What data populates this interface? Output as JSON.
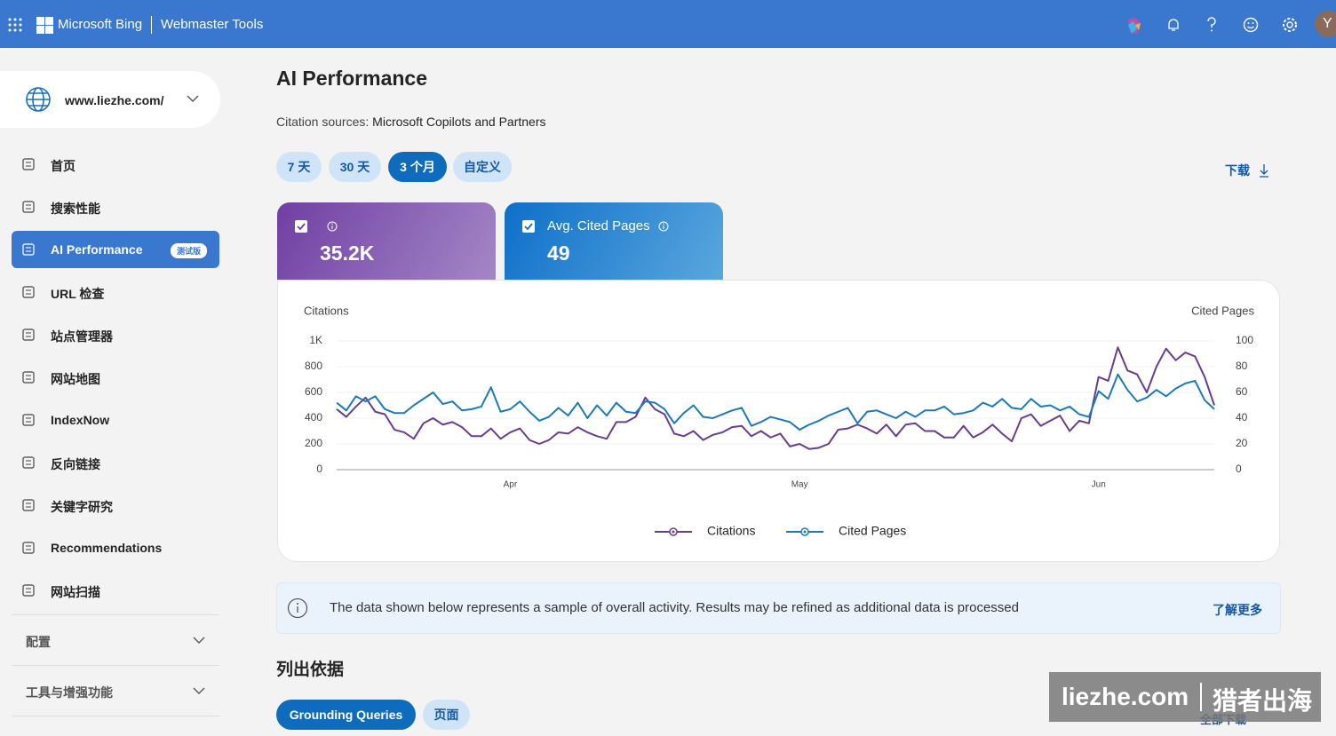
{
  "header": {
    "brand": "Microsoft Bing",
    "product": "Webmaster Tools",
    "avatar": "Y"
  },
  "sidebar": {
    "site": "www.liezhe.com/",
    "nav": [
      {
        "label": "首页"
      },
      {
        "label": "搜索性能"
      },
      {
        "label": "AI Performance",
        "badge": "测试版"
      },
      {
        "label": "URL 检查"
      },
      {
        "label": "站点管理器"
      },
      {
        "label": "网站地图"
      },
      {
        "label": "IndexNow"
      },
      {
        "label": "反向链接"
      },
      {
        "label": "关键字研究"
      },
      {
        "label": "Recommendations"
      },
      {
        "label": "网站扫描"
      }
    ],
    "sections": [
      "配置",
      "工具与增强功能"
    ]
  },
  "page": {
    "title": "AI Performance",
    "citation_label": "Citation sources:",
    "citation_value": "Microsoft Copilots and Partners",
    "ranges": [
      "7 天",
      "30 天",
      "3 个月",
      "自定义"
    ],
    "download": "下载",
    "cards": [
      {
        "value": "35.2K"
      },
      {
        "label": "Avg. Cited Pages",
        "value": 49
      }
    ],
    "notice": "The data shown below represents a sample of overall activity. Results may be refined as additional data is processed",
    "learn_more": "了解更多",
    "section_title": "列出依据",
    "tabs": [
      "Grounding Queries",
      "页面"
    ],
    "download_all": "全部下载"
  },
  "watermark": {
    "site": "liezhe.com",
    "brand": "猎者出海"
  },
  "chart_data": {
    "type": "line",
    "ylabel": "Citations",
    "y2label": "Cited Pages",
    "categories": [
      null,
      null,
      null,
      null,
      null,
      null,
      null,
      null,
      null,
      null,
      null,
      null,
      null,
      null,
      null,
      null,
      null,
      null,
      "Apr",
      null,
      null,
      null,
      null,
      null,
      null,
      null,
      null,
      null,
      null,
      null,
      null,
      null,
      null,
      null,
      null,
      null,
      null,
      null,
      null,
      null,
      null,
      null,
      null,
      null,
      null,
      null,
      null,
      null,
      "May",
      null,
      null,
      null,
      null,
      null,
      null,
      null,
      null,
      null,
      null,
      null,
      null,
      null,
      null,
      null,
      null,
      null,
      null,
      null,
      null,
      null,
      null,
      null,
      null,
      null,
      null,
      null,
      null,
      null,
      null,
      "Jun",
      null,
      null,
      null,
      null,
      null,
      null,
      null,
      null,
      null,
      null,
      null,
      null
    ],
    "series": [
      {
        "name": "Citations",
        "color": "#6a3d8f",
        "values": [
          470,
          410,
          490,
          560,
          450,
          430,
          310,
          290,
          240,
          360,
          400,
          350,
          370,
          330,
          260,
          260,
          320,
          240,
          290,
          320,
          230,
          200,
          230,
          290,
          280,
          330,
          290,
          260,
          240,
          370,
          370,
          410,
          560,
          470,
          430,
          280,
          260,
          300,
          230,
          270,
          290,
          330,
          340,
          260,
          300,
          250,
          280,
          180,
          200,
          160,
          170,
          200,
          310,
          320,
          350,
          320,
          280,
          350,
          260,
          350,
          360,
          300,
          300,
          250,
          250,
          340,
          250,
          290,
          350,
          280,
          220,
          400,
          430,
          340,
          380,
          420,
          300,
          380,
          360,
          720,
          690,
          950,
          770,
          740,
          600,
          800,
          940,
          850,
          910,
          880,
          720,
          500
        ]
      },
      {
        "name": "Cited Pages",
        "color": "#1b7bb8",
        "axis": "y2",
        "values": [
          52,
          46,
          57,
          53,
          57,
          47,
          44,
          44,
          50,
          55,
          60,
          51,
          53,
          46,
          47,
          49,
          64,
          45,
          47,
          53,
          45,
          38,
          41,
          48,
          42,
          52,
          40,
          50,
          42,
          52,
          45,
          44,
          53,
          52,
          47,
          36,
          44,
          50,
          41,
          40,
          43,
          46,
          48,
          34,
          37,
          41,
          39,
          37,
          31,
          35,
          38,
          42,
          45,
          48,
          36,
          45,
          46,
          43,
          40,
          45,
          41,
          46,
          46,
          49,
          43,
          44,
          46,
          52,
          49,
          55,
          48,
          47,
          55,
          49,
          50,
          46,
          49,
          43,
          41,
          61,
          55,
          74,
          62,
          53,
          56,
          62,
          57,
          63,
          67,
          69,
          54,
          47
        ]
      }
    ],
    "ylim": [
      0,
      1000
    ],
    "yticks": [
      0,
      200,
      400,
      600,
      800,
      {
        "value": 1000,
        "label": "1K"
      }
    ],
    "y2lim": [
      0,
      100
    ],
    "y2ticks": [
      0,
      20,
      40,
      60,
      80,
      100
    ],
    "grid": true,
    "legend": "bottom"
  }
}
